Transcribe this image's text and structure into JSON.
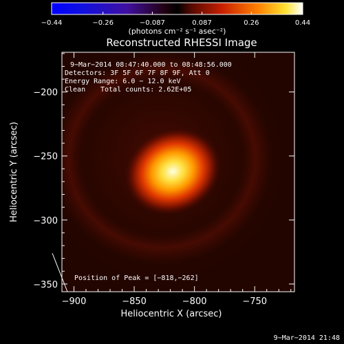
{
  "chart_data": {
    "type": "heatmap",
    "title": "Reconstructed RHESSI Image",
    "xlabel": "Heliocentric X (arcsec)",
    "ylabel": "Heliocentric Y (arcsec)",
    "xlim": [
      -910,
      -717
    ],
    "ylim": [
      -356,
      -169
    ],
    "x_ticks": [
      -900,
      -850,
      -800,
      -750
    ],
    "x_tick_labels": [
      "−900",
      "−850",
      "−800",
      "−750"
    ],
    "y_ticks": [
      -200,
      -250,
      -300,
      -350
    ],
    "y_tick_labels": [
      "−200",
      "−250",
      "−300",
      "−350"
    ],
    "peak": {
      "x": -818,
      "y": -262
    },
    "peak_label": "Position of Peak = [−818,−262]",
    "colorbar": {
      "min": -0.44,
      "max": 0.44,
      "ticks": [
        -0.44,
        -0.26,
        -0.087,
        0.087,
        0.26,
        0.44
      ],
      "tick_labels": [
        "−0.44",
        "−0.26",
        "−0.087",
        "0.087",
        "0.26",
        "0.44"
      ],
      "units_label": "(photons cm⁻² s⁻¹ asec⁻²)"
    },
    "annotations": {
      "time_range": "9−Mar−2014 08:47:40.000 to 08:48:56.000",
      "detectors": "Detectors: 3F 5F 6F 7F 8F 9F, Att 0",
      "energy": "Energy Range: 6.0 − 12.0 keV",
      "clean_method": "Clean",
      "total_counts": "Total counts: 2.62E+05"
    },
    "timestamp": "9−Mar−2014 21:48",
    "colors": {
      "background": "#000000",
      "map_dark": "#230500",
      "map_ring": "#3e0a02",
      "map_core": "#ffffe0"
    }
  }
}
